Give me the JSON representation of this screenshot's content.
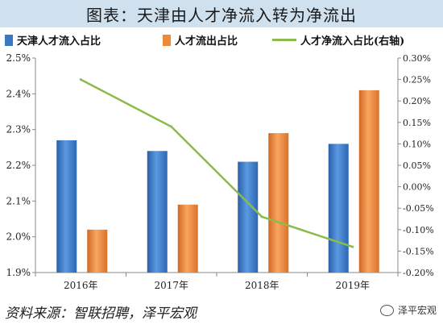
{
  "title": "图表：天津由人才净流入转为净流出",
  "source": "资料来源：智联招聘，泽平宏观",
  "watermark": "泽平宏观",
  "colors": {
    "series1": "#3b78c4",
    "series2": "#ed8a3a",
    "line": "#8dbb4a",
    "title_bg": "#cfe0ef"
  },
  "chart_data": {
    "type": "bar",
    "categories": [
      "2016年",
      "2017年",
      "2018年",
      "2019年"
    ],
    "series": [
      {
        "name": "天津人才流入占比",
        "kind": "bar",
        "axis": "left",
        "values": [
          2.27,
          2.24,
          2.21,
          2.26
        ]
      },
      {
        "name": "人才流出占比",
        "kind": "bar",
        "axis": "left",
        "values": [
          2.02,
          2.09,
          2.29,
          2.41
        ]
      },
      {
        "name": "人才净流入占比(右轴)",
        "kind": "line",
        "axis": "right",
        "values": [
          0.25,
          0.14,
          -0.07,
          -0.14
        ]
      }
    ],
    "ylim_left": [
      1.9,
      2.5
    ],
    "ylim_right": [
      -0.2,
      0.3
    ],
    "yticks_left": [
      "1.9%",
      "2.0%",
      "2.1%",
      "2.2%",
      "2.3%",
      "2.4%",
      "2.5%"
    ],
    "yticks_right": [
      "-0.20%",
      "-0.15%",
      "-0.10%",
      "-0.05%",
      "0.00%",
      "0.05%",
      "0.10%",
      "0.15%",
      "0.20%",
      "0.25%",
      "0.30%"
    ],
    "legend_position": "top",
    "grid": false
  }
}
